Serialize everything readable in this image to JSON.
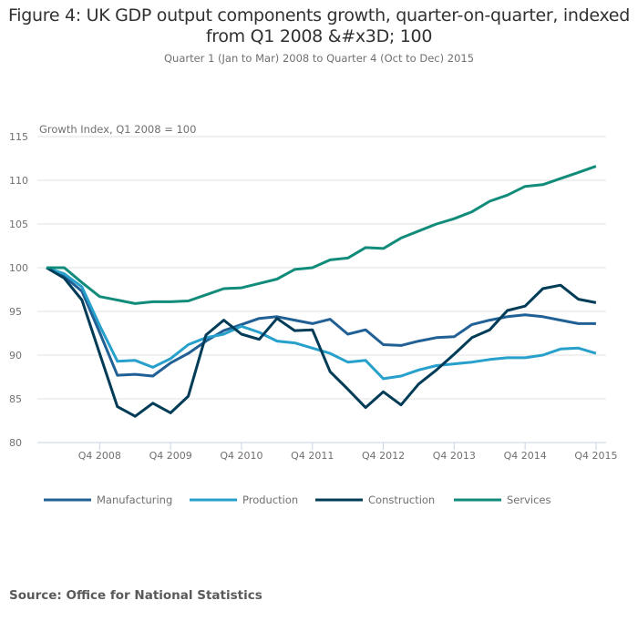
{
  "header": {
    "title_line1": "Figure 4: UK GDP output components growth, quarter-on-quarter, indexed",
    "title_line2": "from Q1 2008 &#x3D; 100",
    "subtitle": "Quarter 1 (Jan to Mar) 2008 to Quarter 4 (Oct to Dec) 2015"
  },
  "footer": {
    "source": "Source: Office for National Statistics"
  },
  "chart_data": {
    "type": "line",
    "title": "Figure 4: UK GDP output components growth, quarter-on-quarter, indexed from Q1 2008 &#x3D; 100",
    "subtitle": "Quarter 1 (Jan to Mar) 2008 to Quarter 4 (Oct to Dec) 2015",
    "xlabel": "",
    "ylabel": "Growth Index, Q1 2008 = 100",
    "ylim": [
      80,
      115
    ],
    "yticks": [
      80,
      85,
      90,
      95,
      100,
      105,
      110,
      115
    ],
    "grid": true,
    "legend_position": "bottom",
    "x": [
      "Q1 2008",
      "Q2 2008",
      "Q3 2008",
      "Q4 2008",
      "Q1 2009",
      "Q2 2009",
      "Q3 2009",
      "Q4 2009",
      "Q1 2010",
      "Q2 2010",
      "Q3 2010",
      "Q4 2010",
      "Q1 2011",
      "Q2 2011",
      "Q3 2011",
      "Q4 2011",
      "Q1 2012",
      "Q2 2012",
      "Q3 2012",
      "Q4 2012",
      "Q1 2013",
      "Q2 2013",
      "Q3 2013",
      "Q4 2013",
      "Q1 2014",
      "Q2 2014",
      "Q3 2014",
      "Q4 2014",
      "Q1 2015",
      "Q2 2015",
      "Q3 2015",
      "Q4 2015"
    ],
    "xtick_labels": [
      "Q4 2008",
      "Q4 2009",
      "Q4 2010",
      "Q4 2011",
      "Q4 2012",
      "Q4 2013",
      "Q4 2014",
      "Q4 2015"
    ],
    "series": [
      {
        "name": "Manufacturing",
        "color": "#206095",
        "values": [
          100,
          99.0,
          97.3,
          92.6,
          87.7,
          87.8,
          87.6,
          89.1,
          90.2,
          91.6,
          92.8,
          93.5,
          94.2,
          94.4,
          94.0,
          93.6,
          94.1,
          92.4,
          92.9,
          91.2,
          91.1,
          91.6,
          92.0,
          92.1,
          93.5,
          94.0,
          94.4,
          94.6,
          94.4,
          94.0,
          93.6,
          93.6
        ]
      },
      {
        "name": "Production",
        "color": "#27a0cc",
        "values": [
          100,
          99.3,
          97.8,
          93.4,
          89.3,
          89.4,
          88.6,
          89.6,
          91.2,
          92.0,
          92.4,
          93.3,
          92.6,
          91.6,
          91.4,
          90.8,
          90.2,
          89.2,
          89.4,
          87.3,
          87.6,
          88.3,
          88.8,
          89.0,
          89.2,
          89.5,
          89.7,
          89.7,
          90.0,
          90.7,
          90.8,
          90.2
        ]
      },
      {
        "name": "Construction",
        "color": "#003c57",
        "values": [
          100,
          98.8,
          96.3,
          90.2,
          84.1,
          83.0,
          84.5,
          83.4,
          85.3,
          92.3,
          94.0,
          92.4,
          91.8,
          94.2,
          92.8,
          92.9,
          88.1,
          86.1,
          84.0,
          85.8,
          84.3,
          86.7,
          88.3,
          90.1,
          92.0,
          92.9,
          95.1,
          95.6,
          97.6,
          98.0,
          96.4,
          96.0
        ]
      },
      {
        "name": "Services",
        "color": "#118c7b",
        "values": [
          100,
          100.0,
          98.3,
          96.7,
          96.3,
          95.9,
          96.1,
          96.1,
          96.2,
          96.9,
          97.6,
          97.7,
          98.2,
          98.7,
          99.8,
          100.0,
          100.9,
          101.1,
          102.3,
          102.2,
          103.4,
          104.2,
          105.0,
          105.6,
          106.4,
          107.6,
          108.3,
          109.3,
          109.5,
          110.2,
          110.9,
          111.6
        ]
      }
    ]
  }
}
